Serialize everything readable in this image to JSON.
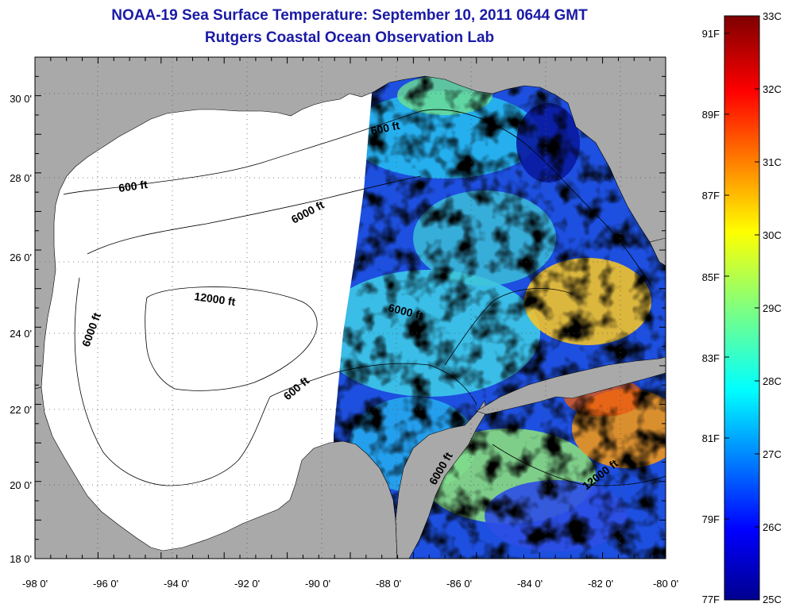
{
  "title": "NOAA-19 Sea Surface Temperature:  September 10, 2011 0644 GMT",
  "subtitle": "Rutgers Coastal Ocean Observation Lab",
  "lon_labels": [
    "-98 0'",
    "-96 0'",
    "-94 0'",
    "-92 0'",
    "-90 0'",
    "-88 0'",
    "-86 0'",
    "-84 0'",
    "-82 0'",
    "-80 0'"
  ],
  "lat_labels": [
    "30 0'",
    "28 0'",
    "26 0'",
    "24 0'",
    "22 0'",
    "20 0'",
    "18 0'"
  ],
  "contour_labels": [
    "600 ft",
    "6000 ft",
    "12000 ft"
  ],
  "colorbar": {
    "fahrenheit": [
      "91F",
      "89F",
      "87F",
      "85F",
      "83F",
      "81F",
      "79F",
      "77F"
    ],
    "celsius": [
      "33C",
      "32C",
      "31C",
      "30C",
      "29C",
      "28C",
      "27C",
      "26C",
      "25C"
    ],
    "range_c": [
      25,
      33
    ]
  },
  "colors": {
    "land": "#a9a9a9",
    "no_data": "#ffffff",
    "title": "#1a1aa6",
    "warm": "#ff8c00",
    "cold": "#00008b"
  }
}
